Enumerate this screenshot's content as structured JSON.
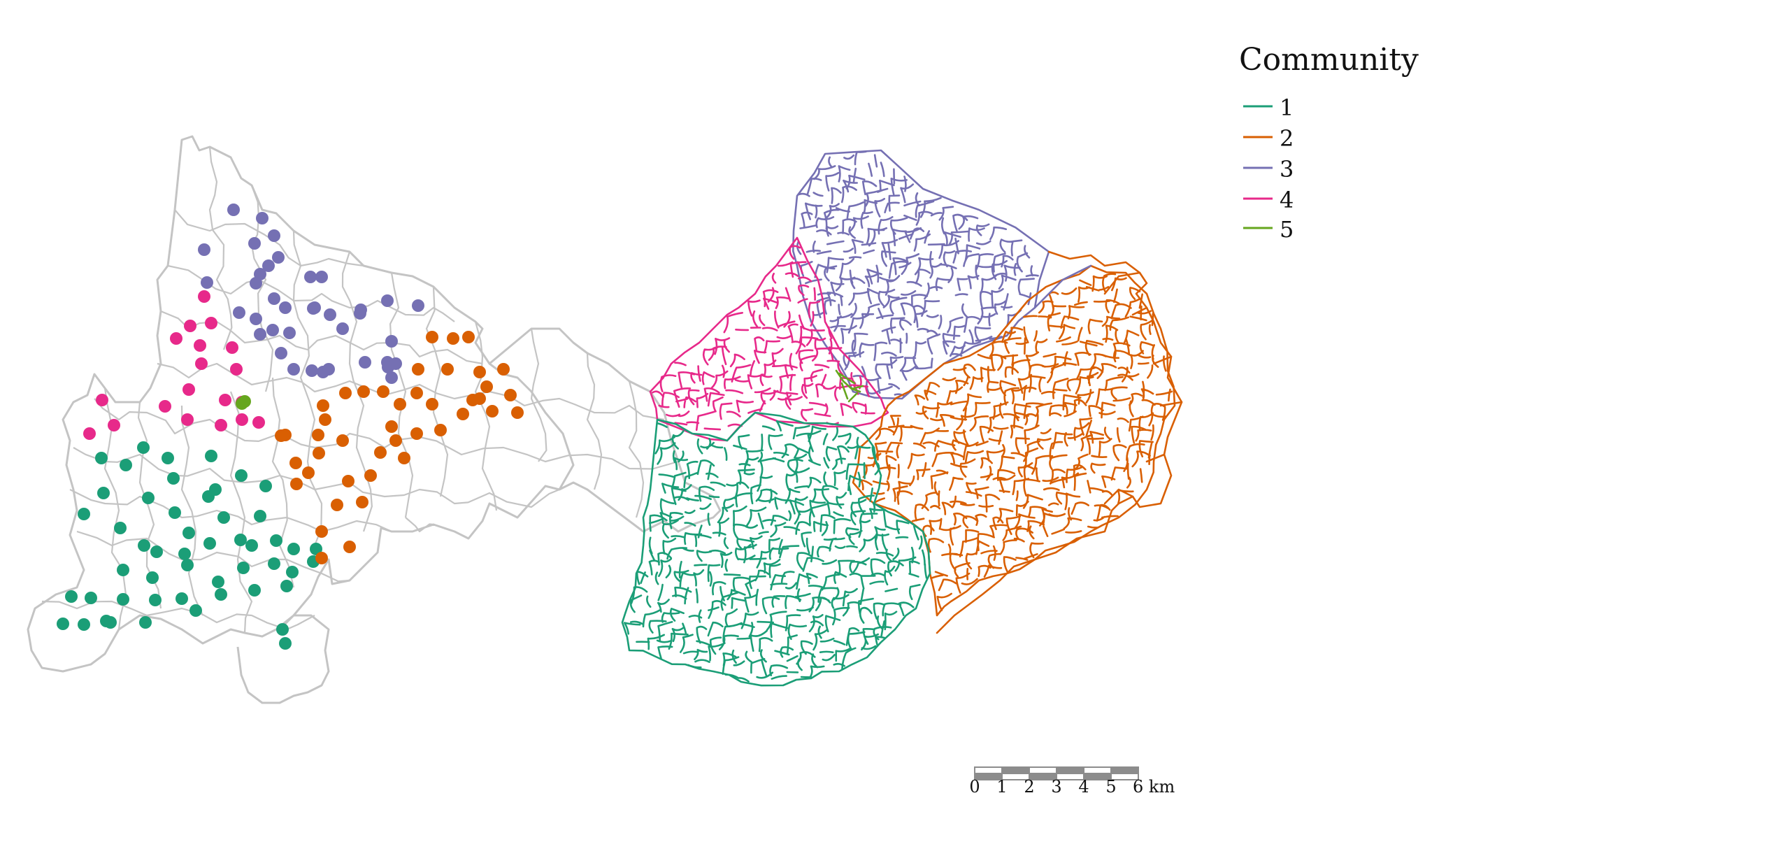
{
  "legend": {
    "title": "Community",
    "items": [
      {
        "label": "1",
        "color": "#1b9e77"
      },
      {
        "label": "2",
        "color": "#d95f02"
      },
      {
        "label": "3",
        "color": "#7570b3"
      },
      {
        "label": "4",
        "color": "#e7298a"
      },
      {
        "label": "5",
        "color": "#66a61e"
      }
    ]
  },
  "scale_bar": {
    "ticks": [
      "0",
      "1",
      "2",
      "3",
      "4",
      "5",
      "6 km"
    ]
  },
  "colors": {
    "boundary": "#c4c4c4",
    "scale_dark": "#8c8c8c",
    "scale_light": "#ffffff"
  },
  "maps": [
    "ward-point-map",
    "street-network-map"
  ]
}
